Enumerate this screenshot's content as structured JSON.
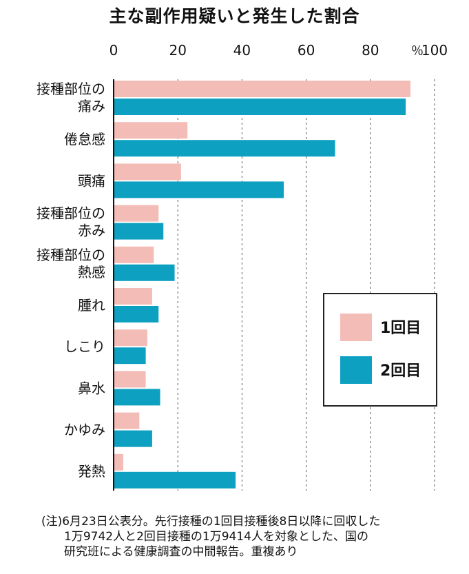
{
  "title": "主な副作用疑いと発生した割合",
  "chart_data": {
    "type": "bar",
    "orientation": "horizontal",
    "title": "主な副作用疑いと発生した割合",
    "unit_label": "％",
    "xlim": [
      0,
      100
    ],
    "ticks": [
      0,
      20,
      40,
      60,
      80,
      100
    ],
    "grid": true,
    "legend_position": "bottom-right",
    "categories": [
      [
        "接種部位の",
        "痛み"
      ],
      [
        "倦怠感"
      ],
      [
        "頭痛"
      ],
      [
        "接種部位の",
        "赤み"
      ],
      [
        "接種部位の",
        "熱感"
      ],
      [
        "腫れ"
      ],
      [
        "しこり"
      ],
      [
        "鼻水"
      ],
      [
        "かゆみ"
      ],
      [
        "発熱"
      ]
    ],
    "series": [
      {
        "name": "1回目",
        "color": "#f4bcb6",
        "values": [
          92.5,
          23.0,
          21.0,
          14.0,
          12.5,
          12.0,
          10.5,
          10.0,
          8.0,
          3.0
        ]
      },
      {
        "name": "2回目",
        "color": "#0ea0c1",
        "values": [
          91.0,
          69.0,
          53.0,
          15.5,
          19.0,
          14.0,
          10.0,
          14.5,
          12.0,
          38.0
        ]
      }
    ]
  },
  "note": {
    "lines": [
      "(注)6月23日公表分。先行接種の1回目接種後8日以降に回収した",
      "1万9742人と2回目接種の1万9414人を対象とした、国の",
      "研究班による健康調査の中間報告。重複あり"
    ]
  }
}
